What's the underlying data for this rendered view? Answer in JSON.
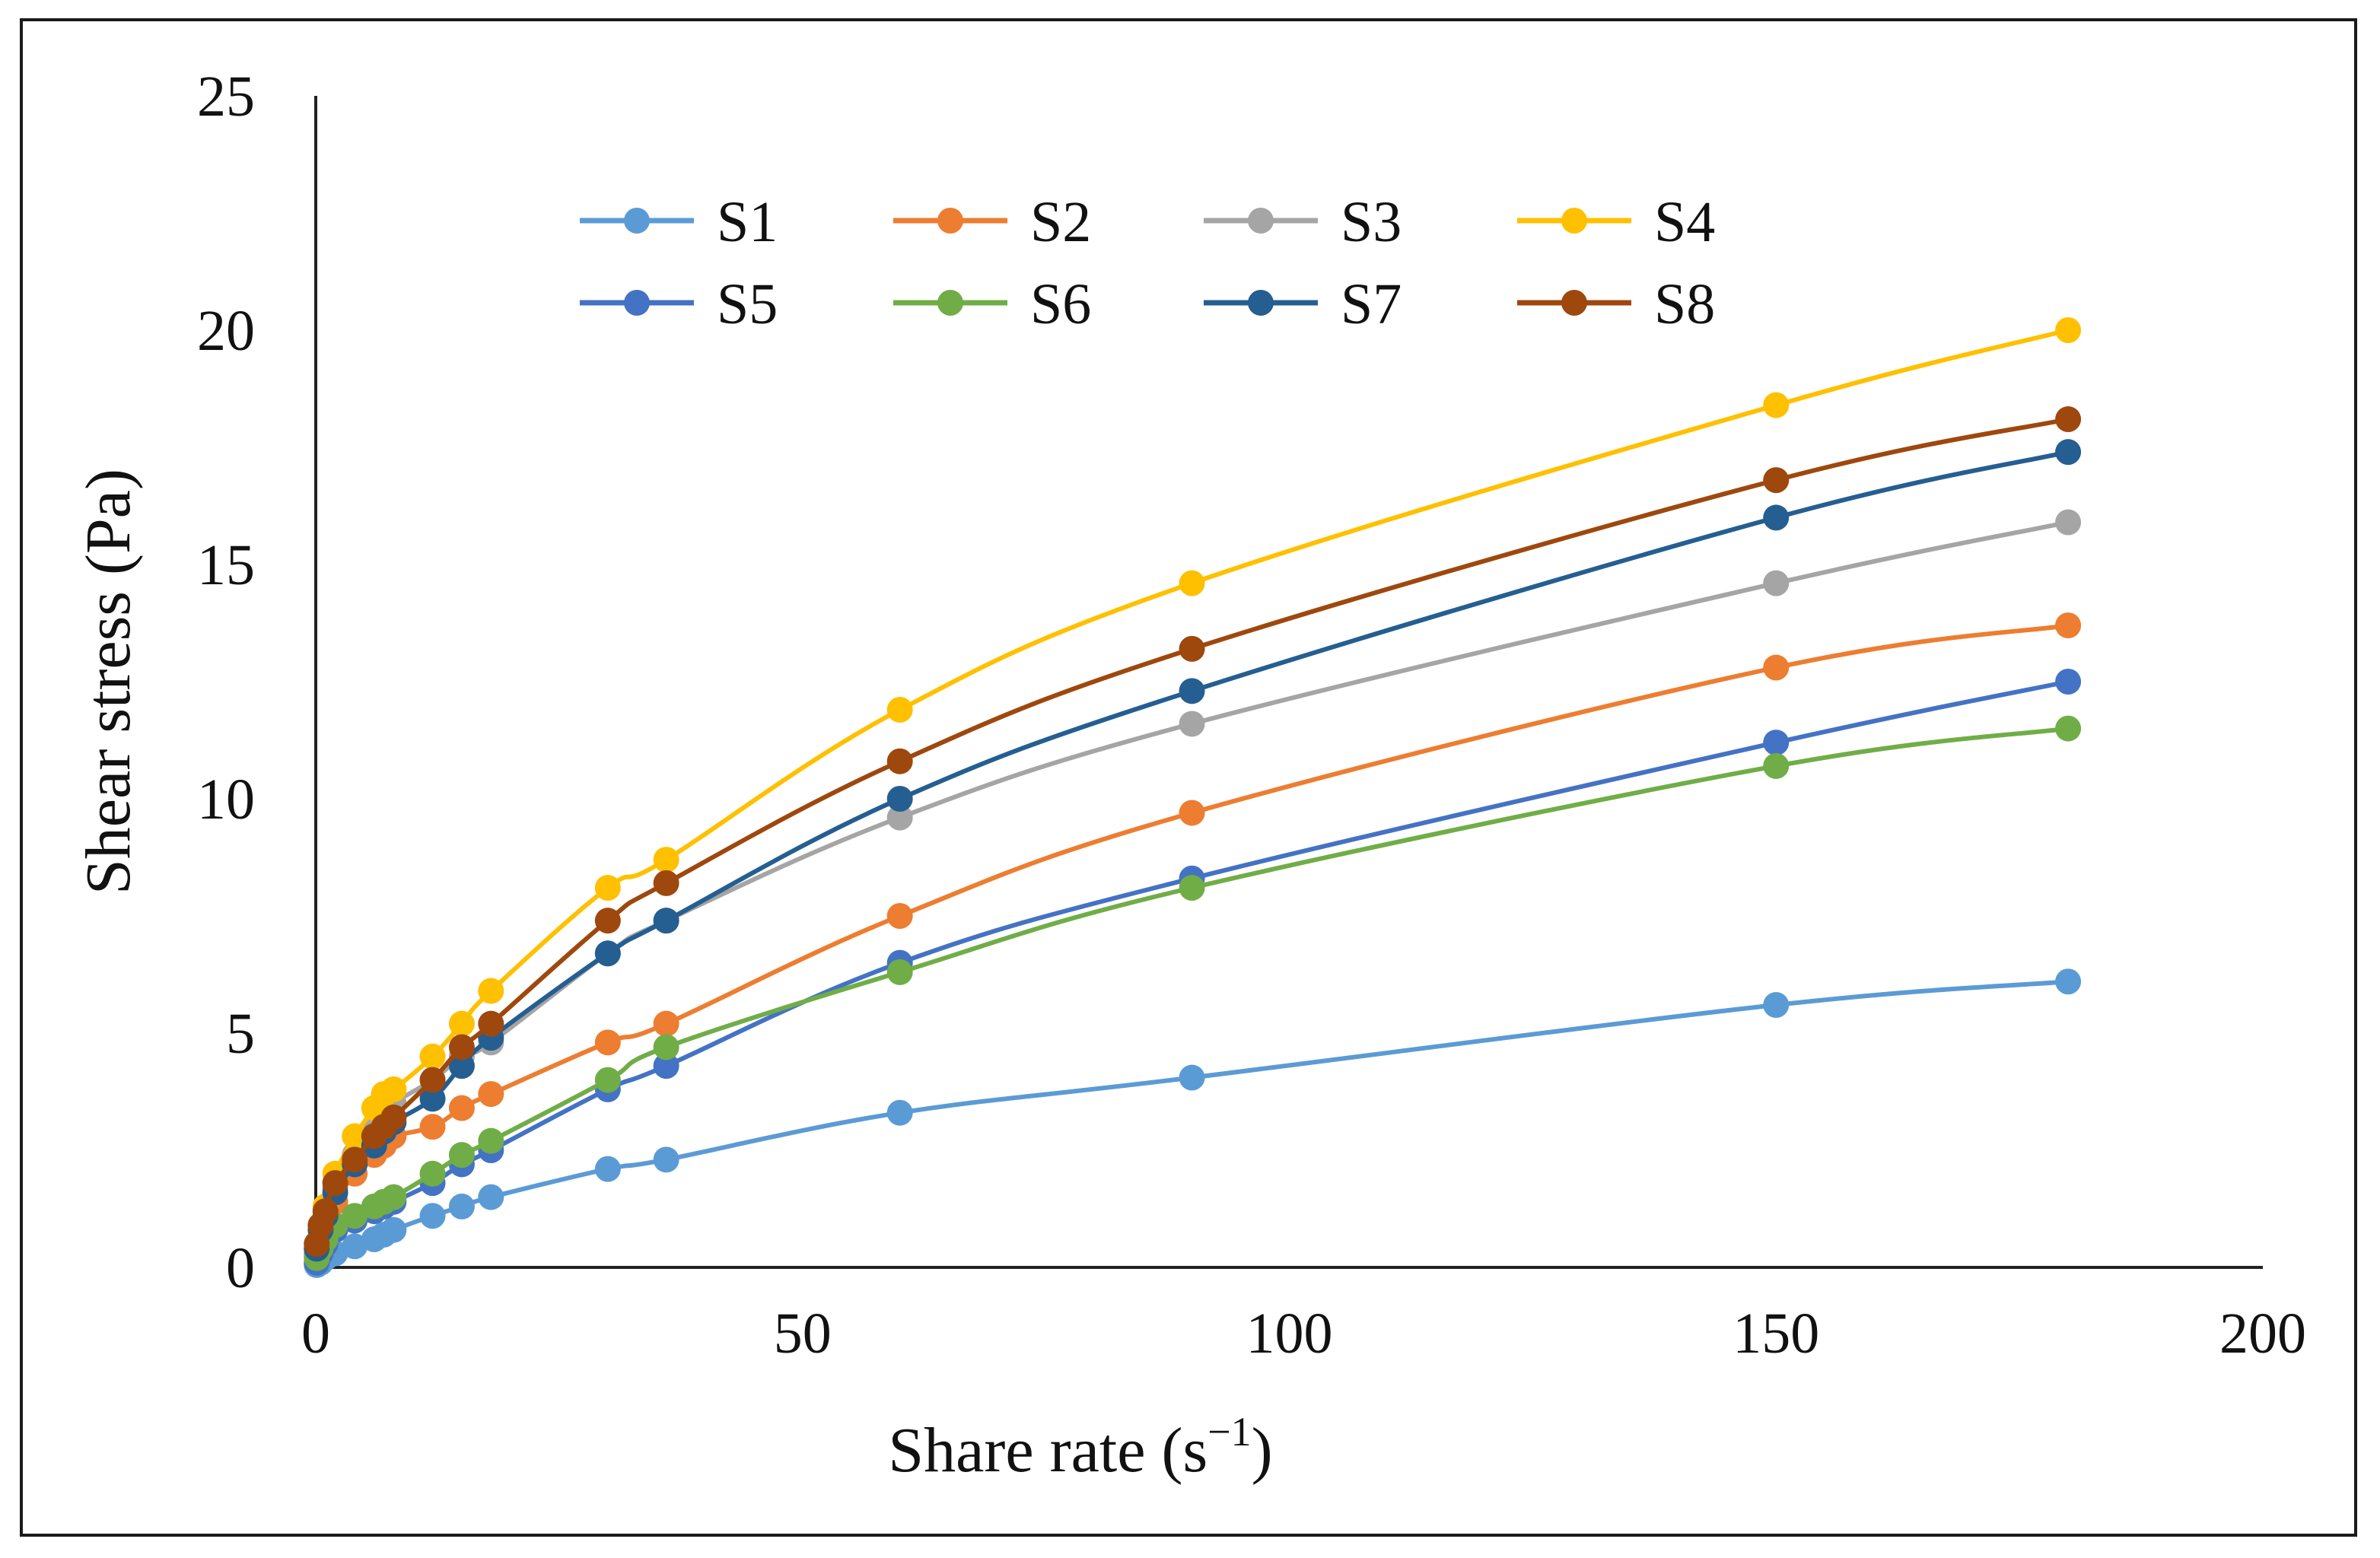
{
  "chart_data": {
    "type": "line",
    "title": "",
    "xlabel": "Share rate (s",
    "xlabel_superscript": "−1",
    "xlabel_suffix": ")",
    "ylabel": "Shear stress (Pa)",
    "xlim": [
      0,
      200
    ],
    "ylim": [
      0,
      25
    ],
    "x_ticks": [
      0,
      50,
      100,
      150,
      200
    ],
    "y_ticks": [
      0,
      5,
      10,
      15,
      20,
      25
    ],
    "x_tick_labels": [
      "0",
      "50",
      "100",
      "150",
      "200"
    ],
    "y_tick_labels": [
      "0",
      "5",
      "10",
      "15",
      "20",
      "25"
    ],
    "grid": false,
    "legend_position": "top-left",
    "x": [
      0.1,
      0.5,
      1,
      2,
      4,
      6,
      7,
      8,
      12,
      15,
      18,
      30,
      36,
      60,
      90,
      150,
      180
    ],
    "series": [
      {
        "name": "S1",
        "color": "#5B9BD5",
        "values": [
          0.05,
          0.1,
          0.2,
          0.3,
          0.45,
          0.6,
          0.7,
          0.8,
          1.1,
          1.3,
          1.5,
          2.1,
          2.3,
          3.3,
          4.05,
          5.6,
          6.1
        ]
      },
      {
        "name": "S2",
        "color": "#ED7D31",
        "values": [
          0.3,
          0.6,
          0.9,
          1.4,
          2.0,
          2.4,
          2.6,
          2.8,
          3.0,
          3.4,
          3.7,
          4.8,
          5.2,
          7.5,
          9.7,
          12.8,
          13.7
        ]
      },
      {
        "name": "S3",
        "color": "#A5A5A5",
        "values": [
          0.4,
          0.8,
          1.2,
          1.7,
          2.4,
          2.9,
          3.2,
          3.5,
          4.0,
          4.5,
          4.8,
          6.7,
          7.4,
          9.6,
          11.6,
          14.6,
          15.9
        ]
      },
      {
        "name": "S4",
        "color": "#FFC000",
        "values": [
          0.5,
          0.9,
          1.3,
          2.0,
          2.8,
          3.4,
          3.7,
          3.8,
          4.5,
          5.2,
          5.9,
          8.1,
          8.7,
          11.9,
          14.6,
          18.4,
          20.0
        ]
      },
      {
        "name": "S5",
        "color": "#4472C4",
        "values": [
          0.1,
          0.3,
          0.5,
          0.8,
          1.0,
          1.2,
          1.3,
          1.4,
          1.8,
          2.2,
          2.5,
          3.8,
          4.3,
          6.5,
          8.3,
          11.2,
          12.5
        ]
      },
      {
        "name": "S6",
        "color": "#70AD47",
        "values": [
          0.2,
          0.4,
          0.6,
          0.9,
          1.1,
          1.3,
          1.4,
          1.5,
          2.0,
          2.4,
          2.7,
          4.0,
          4.7,
          6.3,
          8.1,
          10.7,
          11.5
        ]
      },
      {
        "name": "S7",
        "color": "#255E91",
        "values": [
          0.4,
          0.8,
          1.1,
          1.6,
          2.2,
          2.6,
          2.9,
          3.1,
          3.6,
          4.3,
          4.9,
          6.7,
          7.4,
          10.0,
          12.3,
          16.0,
          17.4
        ]
      },
      {
        "name": "S8",
        "color": "#9E480E",
        "values": [
          0.5,
          0.9,
          1.2,
          1.8,
          2.3,
          2.8,
          3.0,
          3.2,
          4.0,
          4.7,
          5.2,
          7.4,
          8.2,
          10.8,
          13.2,
          16.8,
          18.1
        ]
      }
    ]
  }
}
